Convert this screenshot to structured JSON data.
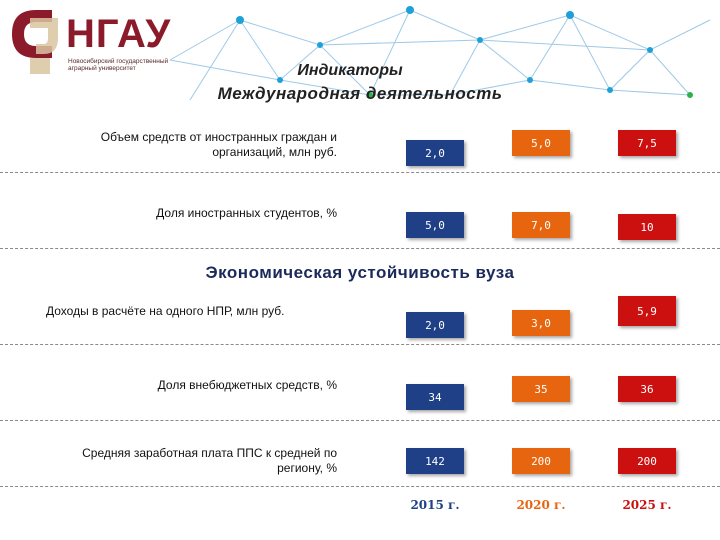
{
  "logo": {
    "name": "НГАУ",
    "subtitle": "Новосибирский государственный аграрный университет"
  },
  "header": {
    "title": "Индикаторы",
    "subtitle": "Международная деятельность"
  },
  "section_economic": "Экономическая устойчивость вуза",
  "indicators": [
    {
      "label": "Объем средств от иностранных граждан и организаций, млн руб.",
      "v2015": "2,0",
      "v2020": "5,0",
      "v2025": "7,5"
    },
    {
      "label": "Доля иностранных студентов, %",
      "v2015": "5,0",
      "v2020": "7,0",
      "v2025": "10"
    },
    {
      "label": "Доходы в расчёте на одного НПР, млн руб.",
      "v2015": "2,0",
      "v2020": "3,0",
      "v2025": "5,9"
    },
    {
      "label": "Доля внебюджетных средств, %",
      "v2015": "34",
      "v2020": "35",
      "v2025": "36"
    },
    {
      "label": "Средняя заработная плата ППС к средней по региону, %",
      "v2015": "142",
      "v2020": "200",
      "v2025": "200"
    }
  ],
  "years": [
    "2015 г.",
    "2020 г.",
    "2025 г."
  ],
  "colors": {
    "y2015": "#1f3f86",
    "y2020": "#e8650f",
    "y2025": "#cc1010",
    "brand": "#8b1a2b"
  }
}
